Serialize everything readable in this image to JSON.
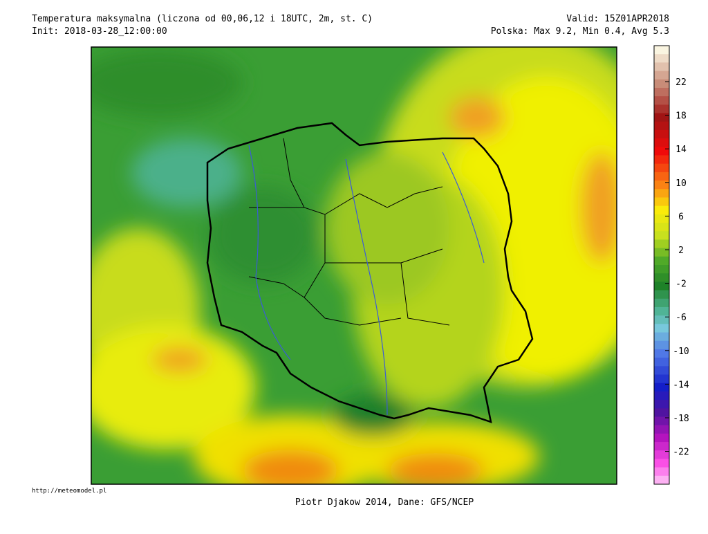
{
  "header": {
    "title": "Temperatura maksymalna (liczona od 00,06,12 i 18UTC, 2m, st. C)",
    "init": "Init: 2018-03-28_12:00:00",
    "valid": "Valid: 15Z01APR2018",
    "stats": "Polska: Max  9.2, Min  0.4, Avg  5.3"
  },
  "colorbar": {
    "labels": [
      22,
      18,
      14,
      10,
      6,
      2,
      -2,
      -6,
      -10,
      -14,
      -18,
      -22
    ]
  },
  "footer": {
    "url": "http://meteomodel.pl",
    "credit": "Piotr Djakow 2014, Dane: GFS/NCEP"
  }
}
